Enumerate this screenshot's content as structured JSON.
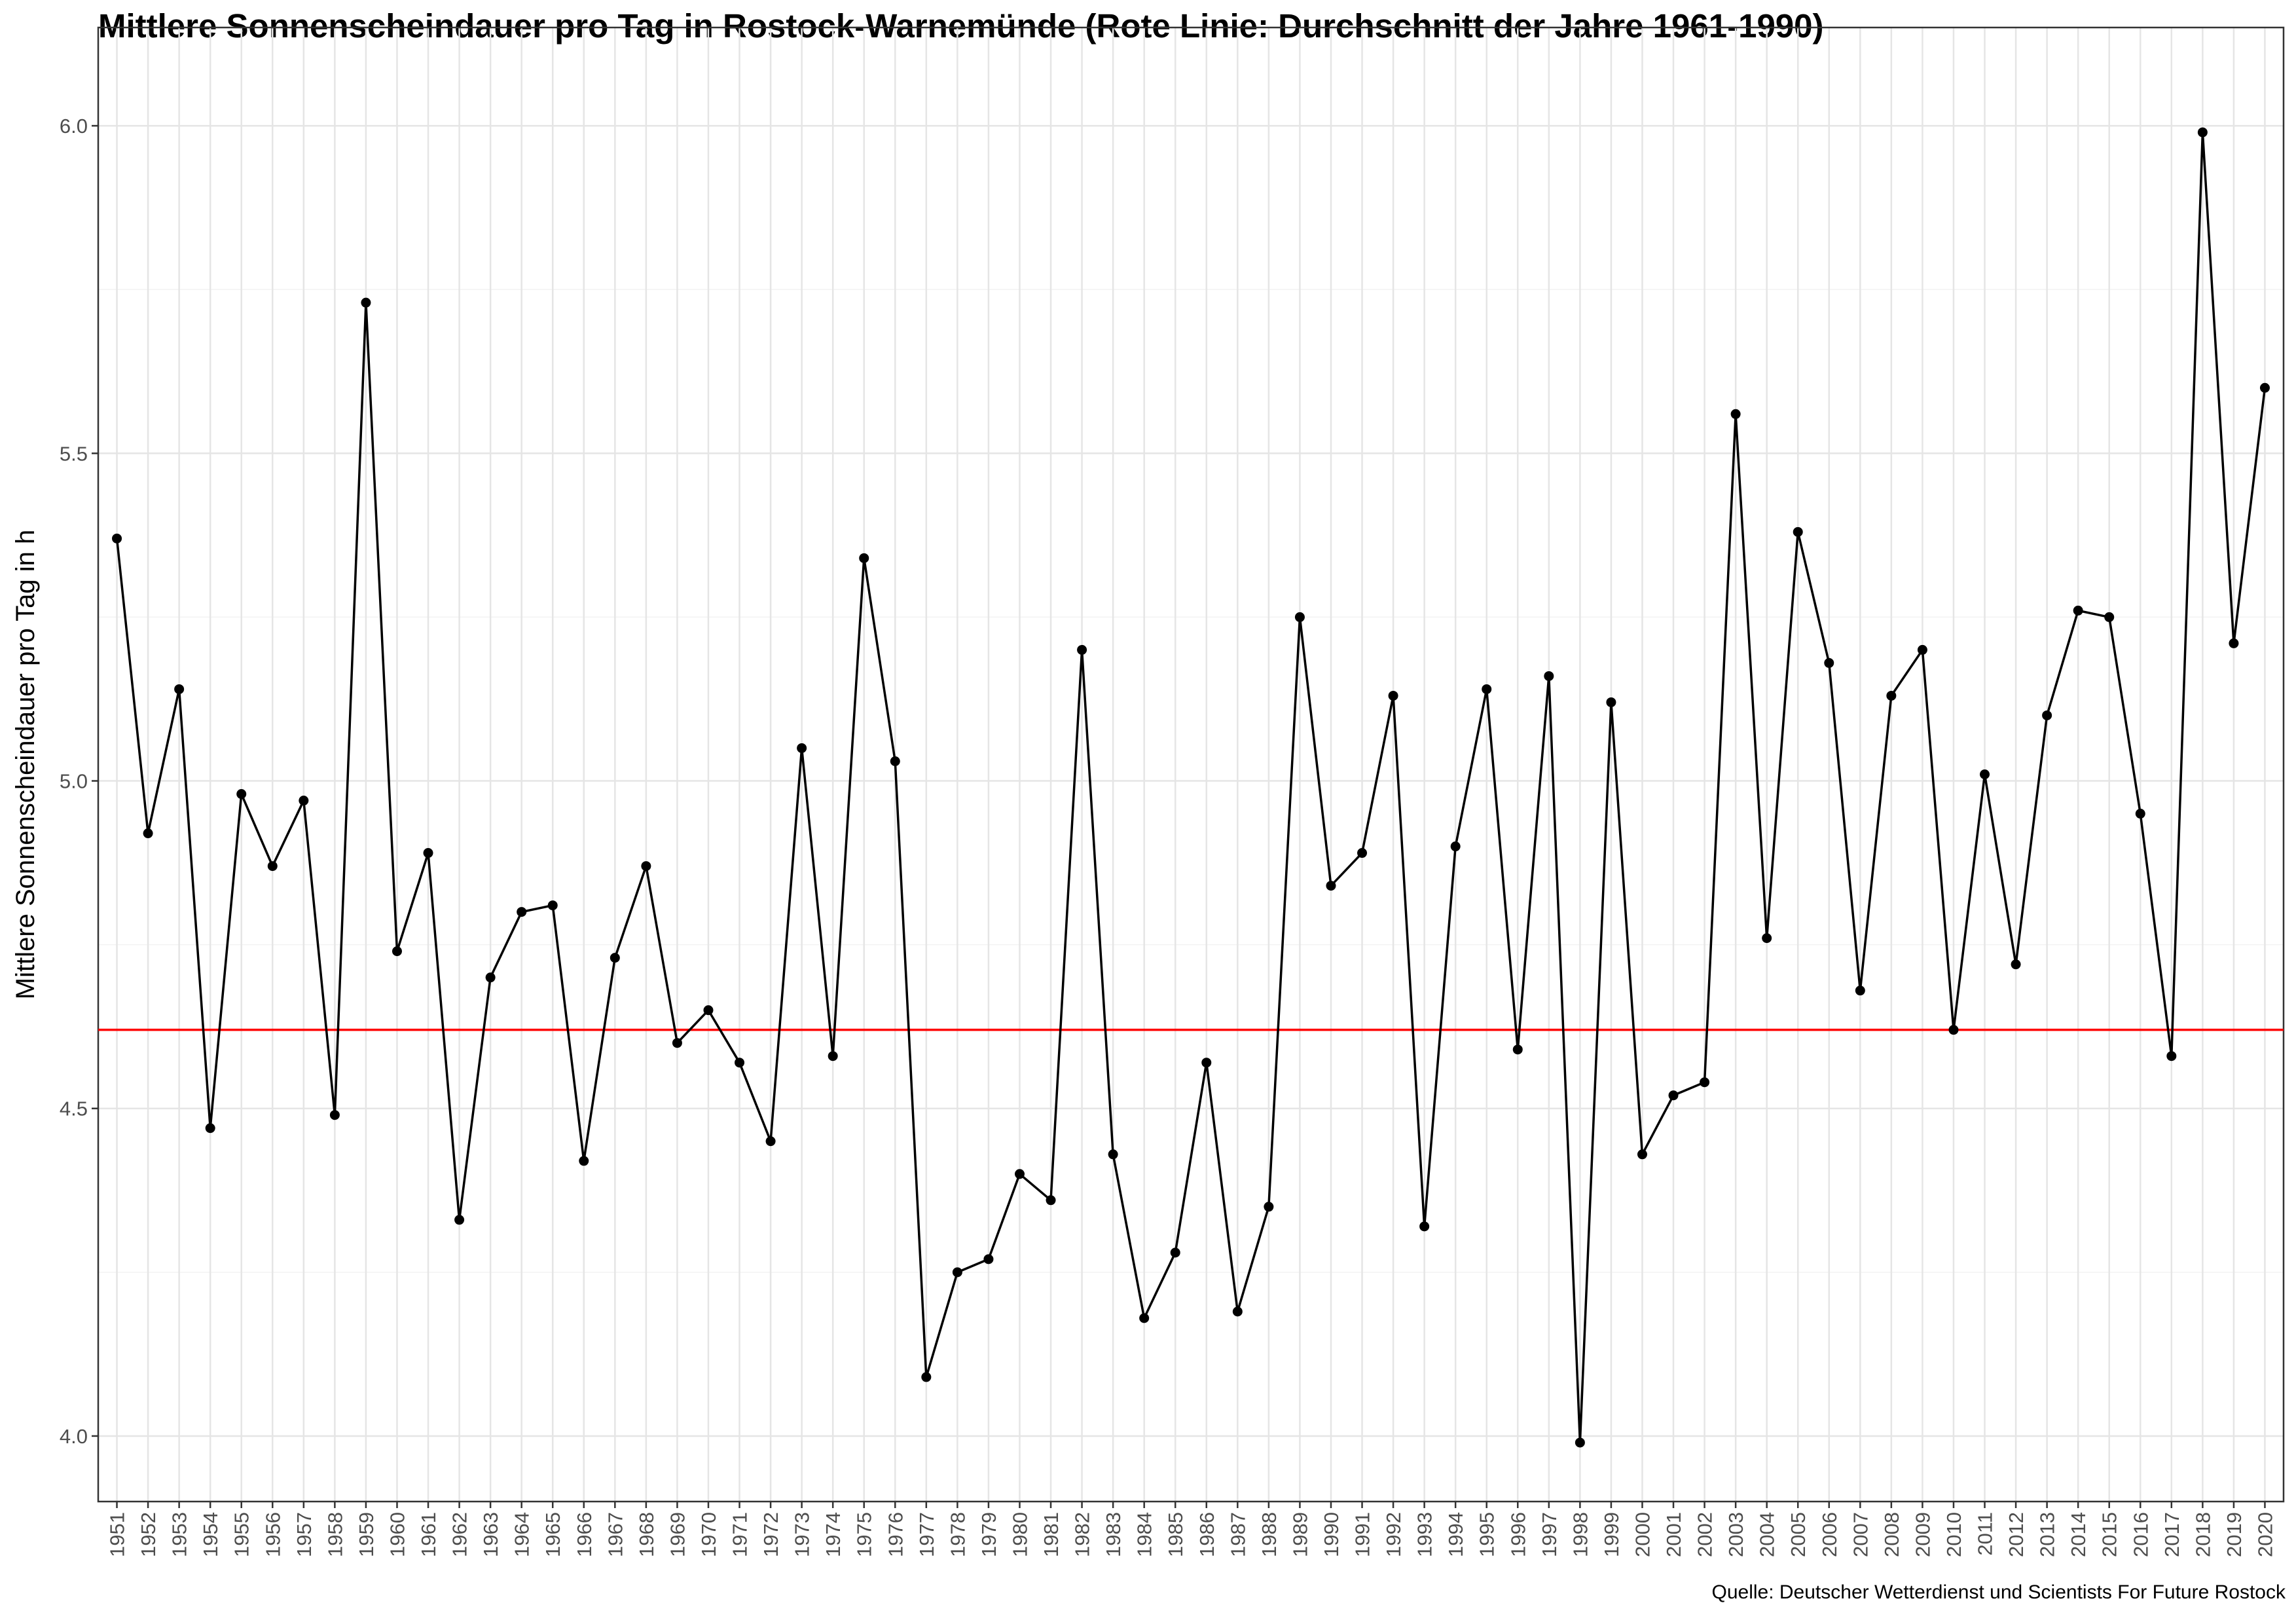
{
  "chart_data": {
    "type": "line",
    "title": "Mittlere Sonnenscheindauer pro Tag in Rostock-Warnemünde (Rote Linie: Durchschnitt der Jahre 1961-1990)",
    "xlabel": "",
    "ylabel": "Mittlere Sonnenscheindauer pro Tag in h",
    "caption": "Quelle: Deutscher Wetterdienst und Scientists For Future Rostock",
    "ylim": [
      3.9,
      6.15
    ],
    "yticks": [
      "4.0",
      "4.5",
      "5.0",
      "5.5",
      "6.0"
    ],
    "grid": true,
    "reference_line": {
      "y": 4.62,
      "color": "#ff0000"
    },
    "line_color": "#000000",
    "x": [
      1951,
      1952,
      1953,
      1954,
      1955,
      1956,
      1957,
      1958,
      1959,
      1960,
      1961,
      1962,
      1963,
      1964,
      1965,
      1966,
      1967,
      1968,
      1969,
      1970,
      1971,
      1972,
      1973,
      1974,
      1975,
      1976,
      1977,
      1978,
      1979,
      1980,
      1981,
      1982,
      1983,
      1984,
      1985,
      1986,
      1987,
      1988,
      1989,
      1990,
      1991,
      1992,
      1993,
      1994,
      1995,
      1996,
      1997,
      1998,
      1999,
      2000,
      2001,
      2002,
      2003,
      2004,
      2005,
      2006,
      2007,
      2008,
      2009,
      2010,
      2011,
      2012,
      2013,
      2014,
      2015,
      2016,
      2017,
      2018,
      2019,
      2020
    ],
    "values": [
      5.37,
      4.92,
      5.14,
      4.47,
      4.98,
      4.87,
      4.97,
      4.49,
      5.73,
      4.74,
      4.89,
      4.33,
      4.7,
      4.8,
      4.81,
      4.42,
      4.73,
      4.87,
      4.6,
      4.65,
      4.57,
      4.45,
      5.05,
      4.58,
      5.34,
      5.03,
      4.09,
      4.25,
      4.27,
      4.4,
      4.36,
      5.2,
      4.43,
      4.18,
      4.28,
      4.57,
      4.19,
      4.35,
      5.25,
      4.84,
      4.89,
      5.13,
      4.32,
      4.9,
      5.14,
      4.59,
      5.16,
      3.99,
      5.12,
      4.43,
      4.52,
      4.54,
      5.56,
      4.76,
      5.38,
      5.18,
      4.68,
      5.13,
      5.2,
      4.62,
      5.01,
      4.72,
      5.1,
      5.26,
      5.25,
      4.95,
      4.58,
      5.99,
      5.21,
      5.6
    ]
  }
}
